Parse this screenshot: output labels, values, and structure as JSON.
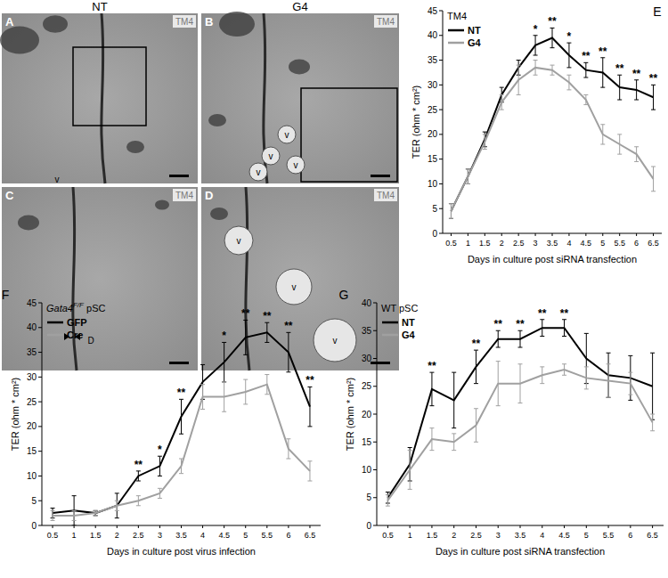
{
  "image_panels": {
    "columns": [
      "NT",
      "G4"
    ],
    "panels": [
      {
        "label": "A",
        "tag": "TM4",
        "marks": [
          "v"
        ]
      },
      {
        "label": "B",
        "tag": "TM4",
        "marks": [
          "v",
          "v",
          "v",
          "v"
        ]
      },
      {
        "label": "C",
        "tag": "TM4",
        "marks": [
          "D"
        ]
      },
      {
        "label": "D",
        "tag": "TM4",
        "marks": [
          "v",
          "v",
          "v"
        ]
      }
    ]
  },
  "chart_data": [
    {
      "type": "line",
      "panel": "E",
      "title": "TM4",
      "x_label": "Days in culture post siRNA transfection",
      "y_label": "TER (ohm * cm²)",
      "x": [
        0.5,
        1,
        1.5,
        2,
        2.5,
        3,
        3.5,
        4,
        4.5,
        5,
        5.5,
        6,
        6.5
      ],
      "xlim": [
        0.25,
        6.75
      ],
      "xticks": [
        0.5,
        1,
        1.5,
        2,
        2.5,
        3,
        3.5,
        4,
        4.5,
        5,
        5.5,
        6,
        6.5
      ],
      "ylim": [
        0,
        45
      ],
      "yticks": [
        0,
        5,
        10,
        15,
        20,
        25,
        30,
        35,
        40,
        45
      ],
      "legend": "upper left",
      "marker": "none",
      "series": [
        {
          "name": "NT",
          "color": "#000000",
          "values": [
            4.5,
            11.5,
            19,
            28,
            33.5,
            38,
            39.5,
            36,
            33,
            32.5,
            29.5,
            29,
            27.5
          ],
          "error": [
            1.5,
            1.5,
            1.5,
            1.5,
            1.5,
            2,
            2,
            2.5,
            1.5,
            3,
            2.5,
            2,
            2.5
          ]
        },
        {
          "name": "G4",
          "color": "#a0a0a0",
          "values": [
            4.5,
            11.5,
            18.5,
            26.5,
            31,
            33.5,
            33,
            30.5,
            27,
            20,
            18,
            16,
            11
          ],
          "error": [
            1.5,
            1.5,
            1.5,
            1.5,
            3,
            1.5,
            1,
            1.5,
            1,
            2,
            2,
            1.5,
            2.5
          ]
        }
      ],
      "annotations": [
        {
          "x": 3,
          "text": "*"
        },
        {
          "x": 3.5,
          "text": "**"
        },
        {
          "x": 4,
          "text": "*"
        },
        {
          "x": 4.5,
          "text": "**"
        },
        {
          "x": 5,
          "text": "**"
        },
        {
          "x": 5.5,
          "text": "**"
        },
        {
          "x": 6,
          "text": "**"
        },
        {
          "x": 6.5,
          "text": "**"
        }
      ]
    },
    {
      "type": "line",
      "panel": "F",
      "title": "Gata4F/F pSC",
      "x_label": "Days in culture post virus infection",
      "y_label": "TER (ohm * cm²)",
      "x": [
        0.5,
        1,
        1.5,
        2,
        2.5,
        3,
        3.5,
        4,
        4.5,
        5,
        5.5,
        6,
        6.5
      ],
      "xlim": [
        0.25,
        6.75
      ],
      "xticks": [
        0.5,
        1,
        1.5,
        2,
        2.5,
        3,
        3.5,
        4,
        4.5,
        5,
        5.5,
        6,
        6.5
      ],
      "ylim": [
        0,
        45
      ],
      "yticks": [
        0,
        5,
        10,
        15,
        20,
        25,
        30,
        35,
        40,
        45
      ],
      "legend": "upper left",
      "marker": "none",
      "series": [
        {
          "name": "GFP",
          "color": "#000000",
          "values": [
            2.5,
            3,
            2.5,
            4,
            10,
            12,
            22,
            29,
            33,
            38,
            39,
            35,
            24
          ],
          "error": [
            1,
            3,
            0.5,
            2.5,
            1,
            2,
            3.5,
            3.5,
            4,
            3.5,
            2,
            4,
            4
          ]
        },
        {
          "name": "Cre",
          "color": "#a0a0a0",
          "values": [
            2,
            2,
            2.5,
            4,
            5,
            6.5,
            12,
            26,
            26,
            27,
            28.5,
            15.5,
            11
          ],
          "error": [
            1,
            1,
            0.5,
            1,
            1,
            1,
            1.5,
            2.5,
            3,
            2.5,
            2,
            2,
            2
          ]
        }
      ],
      "annotations": [
        {
          "x": 2.5,
          "text": "**"
        },
        {
          "x": 3,
          "text": "*"
        },
        {
          "x": 3.5,
          "text": "**"
        },
        {
          "x": 4.5,
          "text": "*"
        },
        {
          "x": 5,
          "text": "**"
        },
        {
          "x": 5.5,
          "text": "**"
        },
        {
          "x": 6,
          "text": "**"
        },
        {
          "x": 6.5,
          "text": "**"
        }
      ]
    },
    {
      "type": "line",
      "panel": "G",
      "title": "WT pSC",
      "x_label": "Days in culture post siRNA transfection",
      "y_label": "TER (ohm * cm²)",
      "x": [
        0.5,
        1,
        1.5,
        2,
        2.5,
        3,
        3.5,
        4,
        4.5,
        5,
        5.5,
        6,
        6.5
      ],
      "xlim": [
        0.25,
        6.75
      ],
      "xticks": [
        0.5,
        1,
        1.5,
        2,
        2.5,
        3,
        3.5,
        4,
        4.5,
        5,
        5.5,
        6,
        6.5
      ],
      "ylim": [
        0,
        40
      ],
      "yticks": [
        0,
        5,
        10,
        15,
        20,
        25,
        30,
        35,
        40
      ],
      "legend": "upper left",
      "marker": "none",
      "series": [
        {
          "name": "NT",
          "color": "#000000",
          "values": [
            5,
            11,
            24.5,
            22.5,
            28.5,
            33.5,
            33.5,
            35.5,
            35.5,
            30,
            27,
            26.5,
            25
          ],
          "error": [
            1,
            3,
            3,
            5,
            3,
            1.5,
            1.5,
            1.5,
            1.5,
            4.5,
            4,
            4,
            6
          ]
        },
        {
          "name": "G4",
          "color": "#a0a0a0",
          "values": [
            4.5,
            10,
            15.5,
            15,
            18,
            25.5,
            25.5,
            27,
            28,
            26.5,
            26,
            25.5,
            18.5
          ],
          "error": [
            1,
            3.5,
            2,
            1.5,
            3,
            4,
            3.5,
            1.5,
            1,
            2,
            3,
            2,
            1.5
          ]
        }
      ],
      "annotations": [
        {
          "x": 1.5,
          "text": "**"
        },
        {
          "x": 2.5,
          "text": "**"
        },
        {
          "x": 3,
          "text": "**"
        },
        {
          "x": 3.5,
          "text": "**"
        },
        {
          "x": 4,
          "text": "**"
        },
        {
          "x": 4.5,
          "text": "**"
        }
      ]
    }
  ]
}
